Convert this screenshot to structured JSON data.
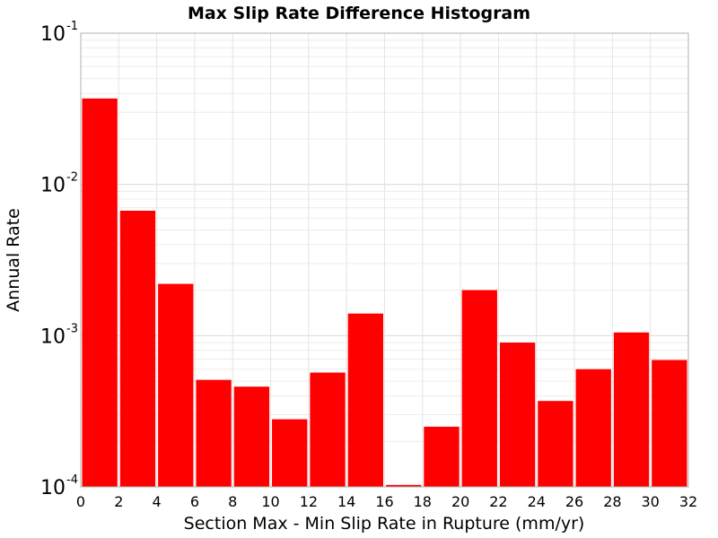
{
  "chart_data": {
    "type": "bar",
    "title": "Max Slip Rate Difference Histogram",
    "xlabel": "Section Max - Min Slip Rate in Rupture (mm/yr)",
    "ylabel": "Annual Rate",
    "xlim": [
      0,
      32
    ],
    "ylim": [
      0.0001,
      0.1
    ],
    "yscale": "log",
    "bin_width": 2,
    "x_ticks": [
      "0",
      "2",
      "4",
      "6",
      "8",
      "10",
      "12",
      "14",
      "16",
      "18",
      "20",
      "22",
      "24",
      "26",
      "28",
      "30",
      "32"
    ],
    "y_ticks": [
      {
        "base": "10",
        "exp": "-4"
      },
      {
        "base": "10",
        "exp": "-3"
      },
      {
        "base": "10",
        "exp": "-2"
      },
      {
        "base": "10",
        "exp": "-1"
      }
    ],
    "grid": true,
    "bar_color": "#ff0000",
    "bins": [
      {
        "x0": 0,
        "x1": 2,
        "value": 0.037
      },
      {
        "x0": 2,
        "x1": 4,
        "value": 0.0067
      },
      {
        "x0": 4,
        "x1": 6,
        "value": 0.0022
      },
      {
        "x0": 6,
        "x1": 8,
        "value": 0.00051
      },
      {
        "x0": 8,
        "x1": 10,
        "value": 0.00046
      },
      {
        "x0": 10,
        "x1": 12,
        "value": 0.00028
      },
      {
        "x0": 12,
        "x1": 14,
        "value": 0.00057
      },
      {
        "x0": 14,
        "x1": 16,
        "value": 0.0014
      },
      {
        "x0": 16,
        "x1": 18,
        "value": 0.000103
      },
      {
        "x0": 18,
        "x1": 20,
        "value": 0.00025
      },
      {
        "x0": 20,
        "x1": 22,
        "value": 0.002
      },
      {
        "x0": 22,
        "x1": 24,
        "value": 0.0009
      },
      {
        "x0": 24,
        "x1": 26,
        "value": 0.00037
      },
      {
        "x0": 26,
        "x1": 28,
        "value": 0.0006
      },
      {
        "x0": 28,
        "x1": 30,
        "value": 0.00105
      },
      {
        "x0": 30,
        "x1": 32,
        "value": 0.00069
      }
    ]
  }
}
